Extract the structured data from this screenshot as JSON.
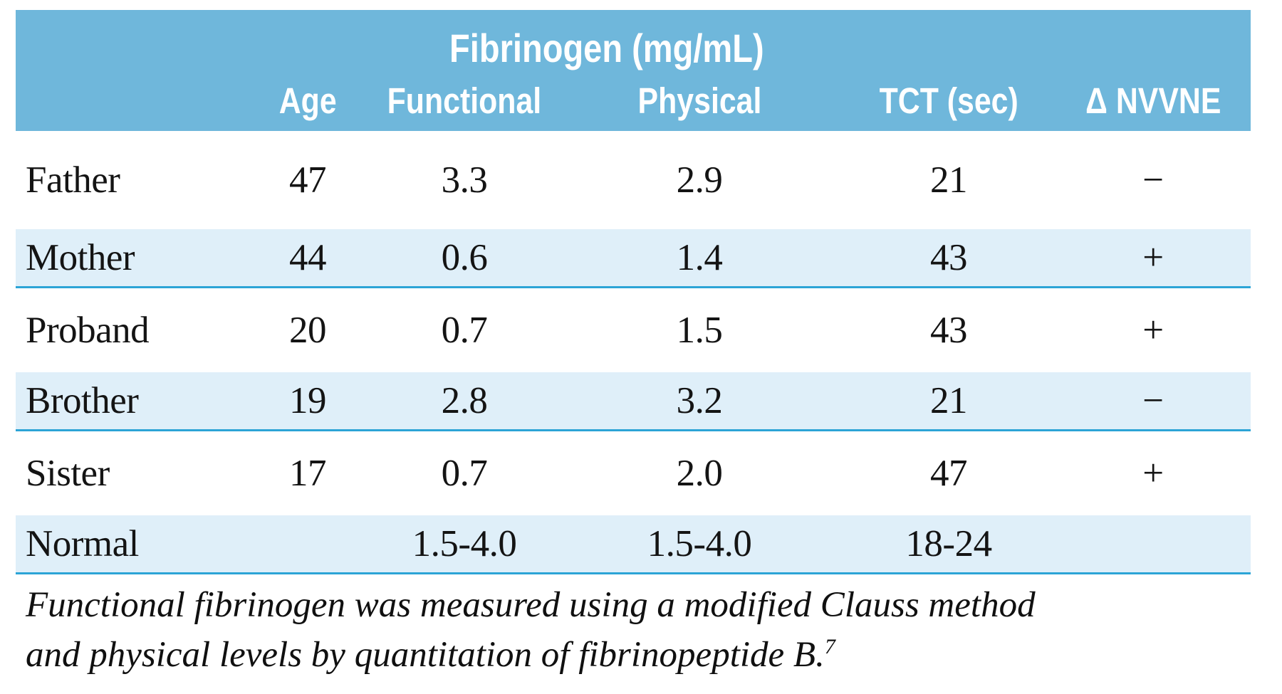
{
  "table": {
    "header": {
      "group_title": "Fibrinogen (mg/mL)",
      "columns": [
        "",
        "Age",
        "Functional",
        "Physical",
        "TCT (sec)",
        "Δ NVVNE"
      ]
    },
    "rows": [
      {
        "name": "Father",
        "age": "47",
        "functional": "3.3",
        "physical": "2.9",
        "tct": "21",
        "delta": "−",
        "shaded": false
      },
      {
        "name": "Mother",
        "age": "44",
        "functional": "0.6",
        "physical": "1.4",
        "tct": "43",
        "delta": "+",
        "shaded": true
      },
      {
        "name": "Proband",
        "age": "20",
        "functional": "0.7",
        "physical": "1.5",
        "tct": "43",
        "delta": "+",
        "shaded": false
      },
      {
        "name": "Brother",
        "age": "19",
        "functional": "2.8",
        "physical": "3.2",
        "tct": "21",
        "delta": "−",
        "shaded": true
      },
      {
        "name": "Sister",
        "age": "17",
        "functional": "0.7",
        "physical": "2.0",
        "tct": "47",
        "delta": "+",
        "shaded": false
      },
      {
        "name": "Normal",
        "age": "",
        "functional": "1.5-4.0",
        "physical": "1.5-4.0",
        "tct": "18-24",
        "delta": "",
        "shaded": true
      }
    ],
    "footnote": {
      "line1": "Functional fibrinogen was measured using a modified Clauss method",
      "line2": "and physical levels by quantitation of fibrinopeptide B.",
      "reference": "7"
    },
    "colors": {
      "header_bg": "#6FB7DB",
      "shaded_row_bg": "#DFEFF9",
      "rule": "#2CA4D6",
      "text": "#141414",
      "header_text": "#FFFFFF"
    }
  }
}
